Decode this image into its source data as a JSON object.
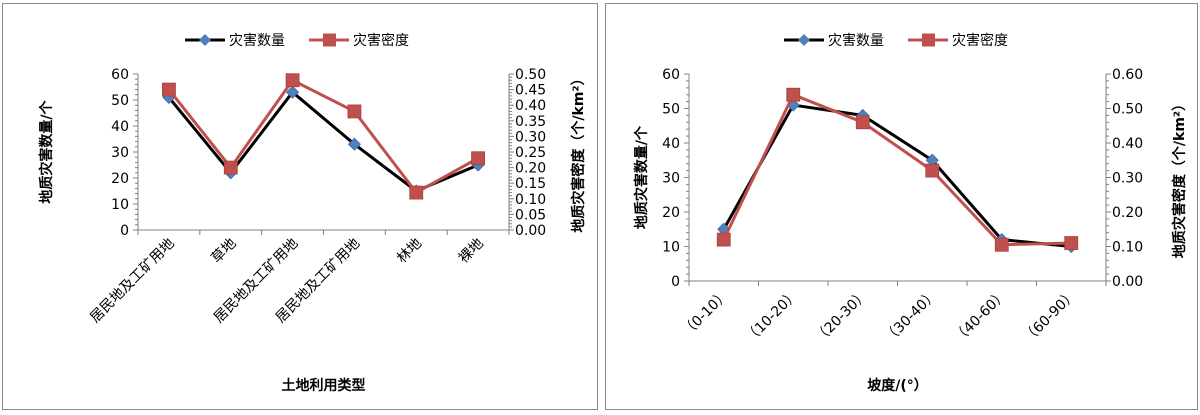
{
  "legend": {
    "series_count": "灾害数量",
    "series_density": "灾害密度"
  },
  "colors": {
    "count_line": "#000000",
    "count_marker": "#4f81bd",
    "density": "#c0504d",
    "axis": "#808080"
  },
  "chart_data": [
    {
      "type": "line",
      "title": "",
      "xlabel": "土地利用类型",
      "ylabel": "地质灾害数量/个",
      "ylabel_right": "地质灾害密度（个/km²）",
      "categories": [
        "居民地及工矿用地",
        "草地",
        "居民地及工矿用地",
        "居民地及工矿用地",
        "林地",
        "裸地"
      ],
      "series": [
        {
          "name": "灾害数量",
          "axis": "left",
          "values": [
            51,
            22,
            53,
            33,
            15,
            25
          ]
        },
        {
          "name": "灾害密度",
          "axis": "right",
          "values": [
            0.45,
            0.2,
            0.48,
            0.38,
            0.12,
            0.23
          ]
        }
      ],
      "ylim": [
        0,
        60
      ],
      "ylim_right": [
        0,
        0.5
      ],
      "yticks": [
        "0",
        "10",
        "20",
        "30",
        "40",
        "50",
        "60"
      ],
      "yticks_right": [
        "0.00",
        "0.05",
        "0.10",
        "0.15",
        "0.20",
        "0.25",
        "0.30",
        "0.35",
        "0.40",
        "0.45",
        "0.50"
      ],
      "legend_position": "top",
      "grid": false
    },
    {
      "type": "line",
      "title": "",
      "xlabel": "坡度/(°）",
      "ylabel": "地质灾害数量/个",
      "ylabel_right": "地质灾害密度（个/km²）",
      "categories": [
        "（0-10）",
        "（10-20）",
        "（20-30）",
        "（30-40）",
        "（40-60）",
        "（60-90）"
      ],
      "series": [
        {
          "name": "灾害数量",
          "axis": "left",
          "values": [
            15,
            51,
            48,
            35,
            12,
            10
          ]
        },
        {
          "name": "灾害密度",
          "axis": "right",
          "values": [
            0.12,
            0.54,
            0.46,
            0.32,
            0.105,
            0.11
          ]
        }
      ],
      "ylim": [
        0,
        60
      ],
      "ylim_right": [
        0,
        0.6
      ],
      "yticks": [
        "0",
        "10",
        "20",
        "30",
        "40",
        "50",
        "60"
      ],
      "yticks_right": [
        "0.00",
        "0.10",
        "0.20",
        "0.30",
        "0.40",
        "0.50",
        "0.60"
      ],
      "legend_position": "top",
      "grid": false
    }
  ]
}
